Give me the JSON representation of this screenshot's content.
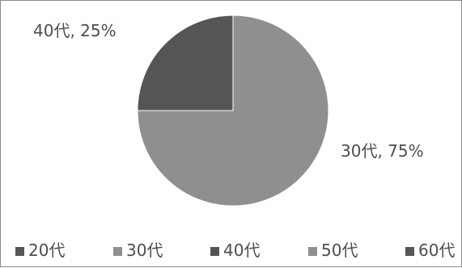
{
  "chart_data": {
    "type": "pie",
    "title": "",
    "categories": [
      "20代",
      "30代",
      "40代",
      "50代",
      "60代"
    ],
    "values": [
      0,
      75,
      25,
      0,
      0
    ],
    "colors": [
      "#555555",
      "#8f8f8f",
      "#555555",
      "#8f8f8f",
      "#555555"
    ],
    "data_labels": [
      "",
      "30代, 75%",
      "40代, 25%",
      "",
      ""
    ],
    "legend": {
      "placement": "bottom",
      "entries": [
        "20代",
        "30代",
        "40代",
        "50代",
        "60代"
      ]
    }
  }
}
